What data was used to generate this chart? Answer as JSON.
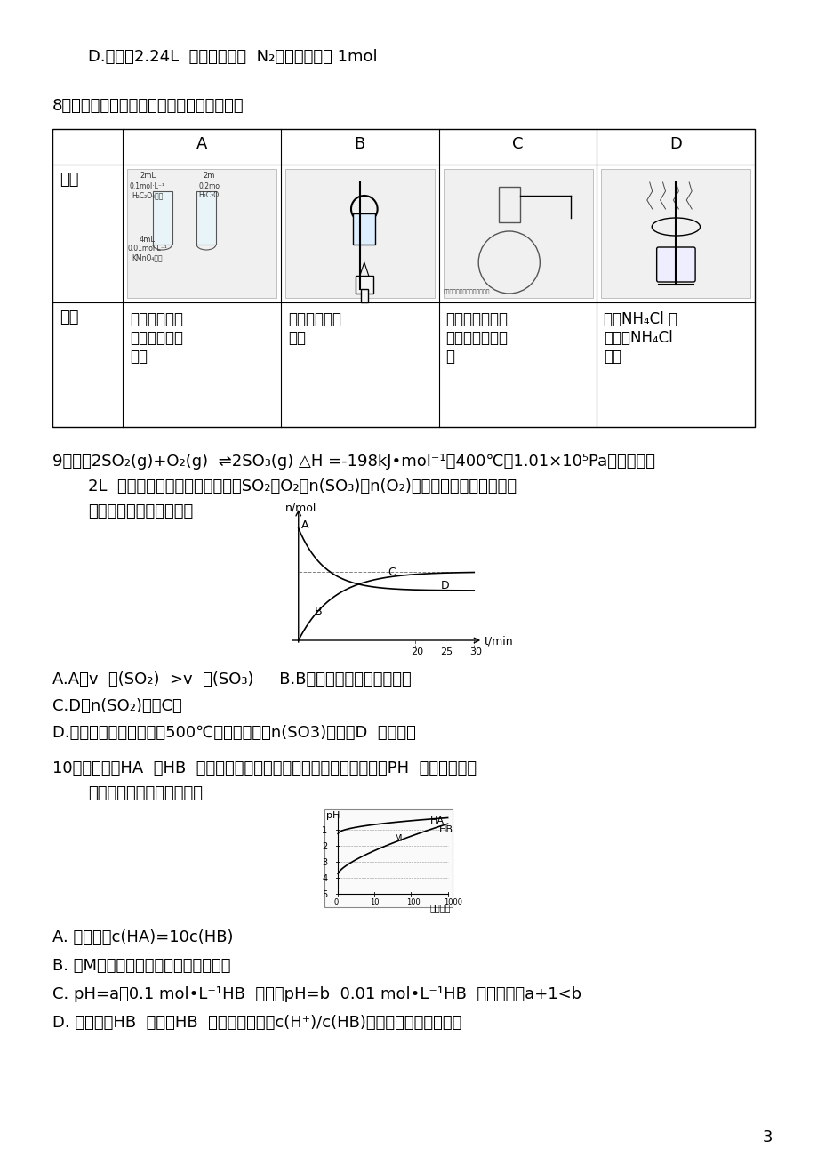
{
  "background_color": "#ffffff",
  "page_number": "3",
  "font_size_body": 14,
  "font_size_small": 12,
  "content": {
    "line_D": "D.若生成2.24L （标准状况） N₂，则转移电子 1mol",
    "q8_title": "8、下列实验方案中能达到相应实验目的的是",
    "table": {
      "headers": [
        "",
        "A",
        "B",
        "C",
        "D"
      ],
      "row1_label": "方案",
      "row2_label": "目的",
      "row2_A": "探究浓度对化\n学反应速率的\n影响",
      "row2_B": "灼烧海带成海\n带灰",
      "row2_C": "证明铁粉能与水\n蒸气反应产生氢\n气",
      "row2_D": "蒸干NH₄Cl 溶\n液制备NH₄Cl\n晶体"
    },
    "q9_title": "9、已知2SO₂(g)+O₂(g) ⇌2SO₃(g) △H =-198kJ•mol⁻¹。400℃，1.01×10⁵Pa，向容积为",
    "q9_line2": "2L  的恒容密闭容器中充入一定量SO₂和O₂，n(SO₃)和n(O₂)等随时间的变化曲线如图",
    "q9_line3": "所示。下列叙述正确的是",
    "q9_options": {
      "A": "A.A点v  正(SO₂)  >v  逆(SO₃)     B.B点表示反应处于平衡状态",
      "C": "C.D点n(SO₂)大于C点",
      "D": "D.其它条件不变，升温至500℃并达平衡时，n(SO3)比图中D  点的值大"
    },
    "q10_title": "10、常温下将HA  和HB  两种一元酸的溶液分别加水稀释，稀释时溶液PH  的变化如图所",
    "q10_line2": "示。则下列叙述中正确的是",
    "q10_options": {
      "A": "A. 稀释前，c(HA)=10c(HB)",
      "B": "B. 在M点两种溶液中水的电离程度相同",
      "C": "C. pH=a的0.1 mol•L⁻¹HB  溶液与pH=b  0.01 mol•L⁻¹HB  溶液相比，a+1<b",
      "D": "D. 加水稀释HB  溶液，HB  的电离度增大，c(H⁺)/c(HB)减小，溶液的酸性减弱"
    }
  }
}
